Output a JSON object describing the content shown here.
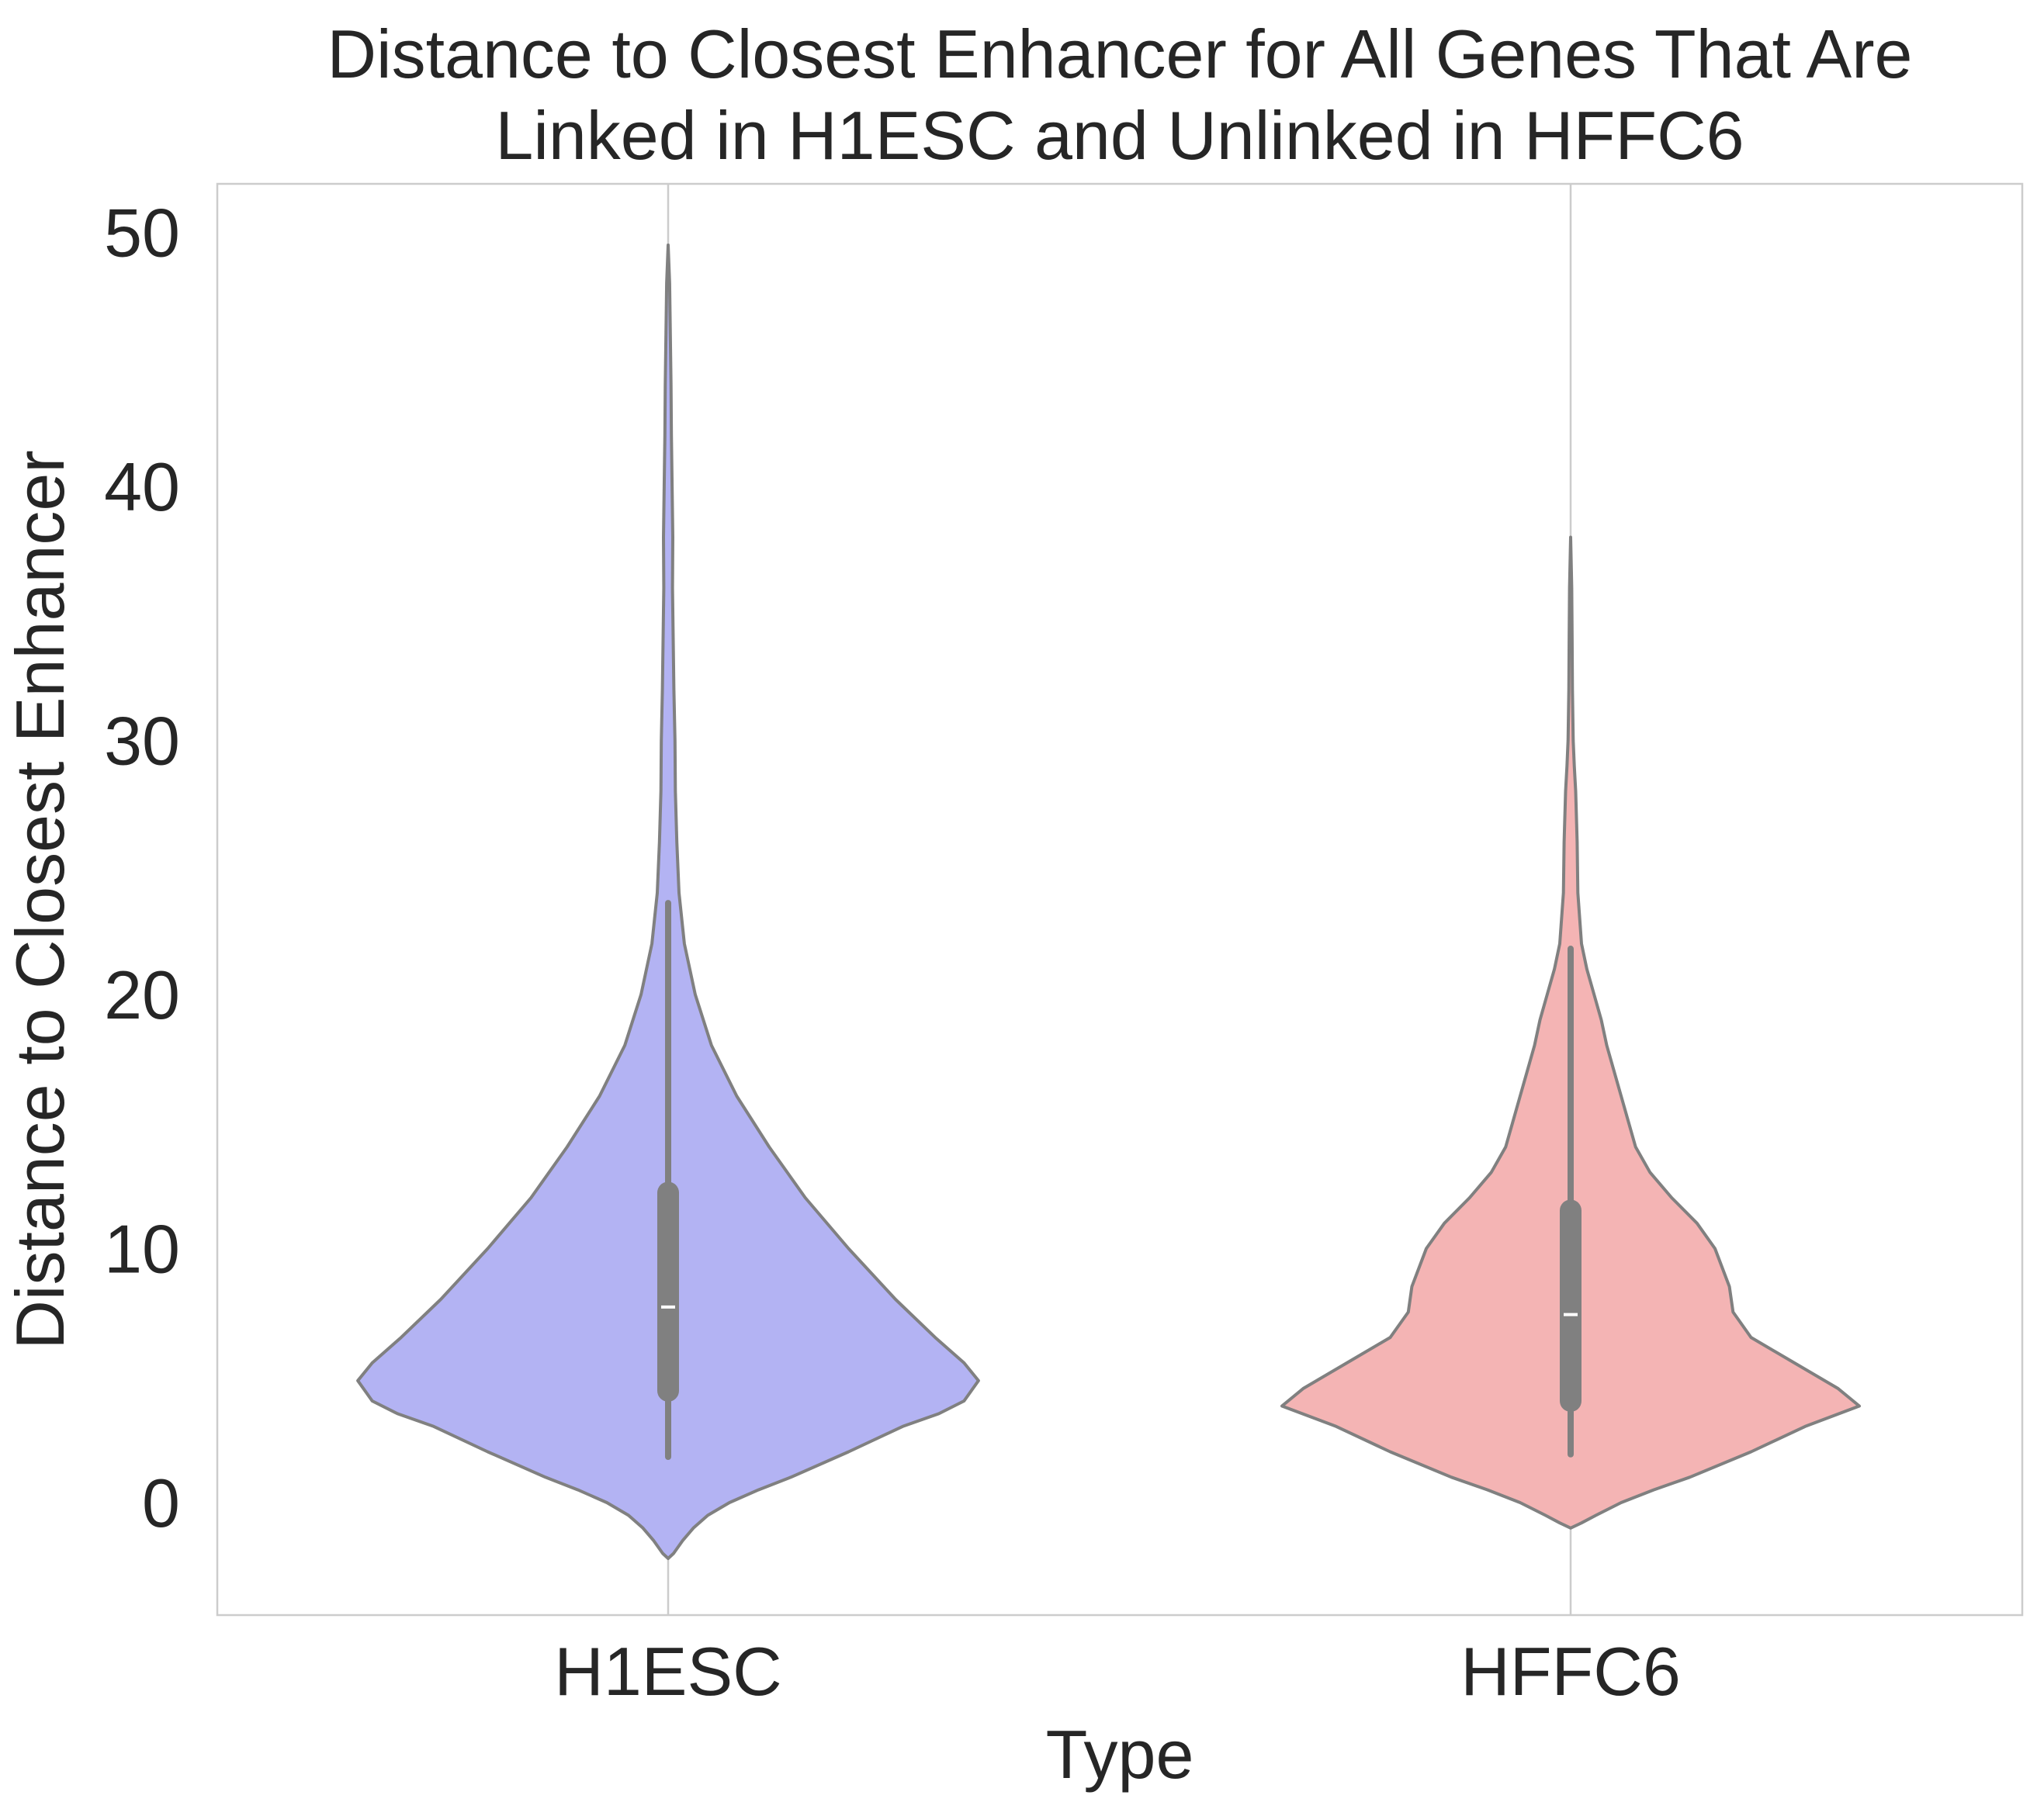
{
  "chart_data": {
    "type": "violin",
    "title_lines": [
      "Distance to Closest Enhancer for All Genes That Are",
      "Linked in H1ESC and Unlinked in HFFC6"
    ],
    "xlabel": "Type",
    "ylabel": "Distance to Closest Enhancer",
    "ylim": [
      -4.8,
      52
    ],
    "yticks": [
      0,
      10,
      20,
      30,
      40,
      50
    ],
    "grid": true,
    "categories": [
      "H1ESC",
      "HFFC6"
    ],
    "outline_color": "#808080",
    "series": [
      {
        "category": "H1ESC",
        "color": "#b3b3f3",
        "whisker_low": 1.8,
        "q1": 4.4,
        "median": 7.7,
        "q3": 12.2,
        "whisker_high": 23.6,
        "density": [
          [
            -2.2,
            0.0
          ],
          [
            -2.0,
            0.015
          ],
          [
            -1.5,
            0.04
          ],
          [
            -1.0,
            0.07
          ],
          [
            -0.5,
            0.11
          ],
          [
            0.0,
            0.17
          ],
          [
            0.5,
            0.25
          ],
          [
            1.0,
            0.34
          ],
          [
            2.0,
            0.5
          ],
          [
            3.0,
            0.65
          ],
          [
            3.5,
            0.75
          ],
          [
            4.0,
            0.82
          ],
          [
            4.8,
            0.86
          ],
          [
            5.5,
            0.82
          ],
          [
            6.5,
            0.74
          ],
          [
            8.0,
            0.63
          ],
          [
            10.0,
            0.5
          ],
          [
            12.0,
            0.38
          ],
          [
            14.0,
            0.28
          ],
          [
            16.0,
            0.19
          ],
          [
            18.0,
            0.12
          ],
          [
            20.0,
            0.075
          ],
          [
            22.0,
            0.045
          ],
          [
            24.0,
            0.03
          ],
          [
            26.0,
            0.024
          ],
          [
            28.0,
            0.02
          ],
          [
            30.0,
            0.019
          ],
          [
            32.0,
            0.016
          ],
          [
            34.0,
            0.014
          ],
          [
            36.0,
            0.012
          ],
          [
            38.0,
            0.013
          ],
          [
            40.0,
            0.011
          ],
          [
            42.0,
            0.009
          ],
          [
            44.0,
            0.008
          ],
          [
            46.0,
            0.006
          ],
          [
            48.0,
            0.004
          ],
          [
            49.5,
            0.0
          ]
        ]
      },
      {
        "category": "HFFC6",
        "color": "#f4b4b4",
        "whisker_low": 1.9,
        "q1": 4.0,
        "median": 7.4,
        "q3": 11.5,
        "whisker_high": 21.8,
        "density": [
          [
            -1.0,
            0.0
          ],
          [
            -0.8,
            0.03
          ],
          [
            -0.5,
            0.07
          ],
          [
            0.0,
            0.14
          ],
          [
            0.5,
            0.23
          ],
          [
            1.0,
            0.33
          ],
          [
            2.0,
            0.5
          ],
          [
            3.0,
            0.65
          ],
          [
            3.8,
            0.8
          ],
          [
            4.5,
            0.74
          ],
          [
            5.5,
            0.62
          ],
          [
            6.5,
            0.5
          ],
          [
            7.5,
            0.45
          ],
          [
            8.5,
            0.44
          ],
          [
            10.0,
            0.4
          ],
          [
            11.0,
            0.35
          ],
          [
            12.0,
            0.28
          ],
          [
            13.0,
            0.22
          ],
          [
            14.0,
            0.18
          ],
          [
            15.0,
            0.16
          ],
          [
            16.0,
            0.14
          ],
          [
            17.0,
            0.12
          ],
          [
            18.0,
            0.1
          ],
          [
            19.0,
            0.085
          ],
          [
            20.0,
            0.065
          ],
          [
            21.0,
            0.045
          ],
          [
            22.0,
            0.03
          ],
          [
            24.0,
            0.02
          ],
          [
            26.0,
            0.018
          ],
          [
            28.0,
            0.014
          ],
          [
            29.0,
            0.01
          ],
          [
            30.0,
            0.007
          ],
          [
            32.0,
            0.005
          ],
          [
            34.0,
            0.004
          ],
          [
            36.0,
            0.003
          ],
          [
            38.0,
            0.0
          ]
        ]
      }
    ]
  }
}
